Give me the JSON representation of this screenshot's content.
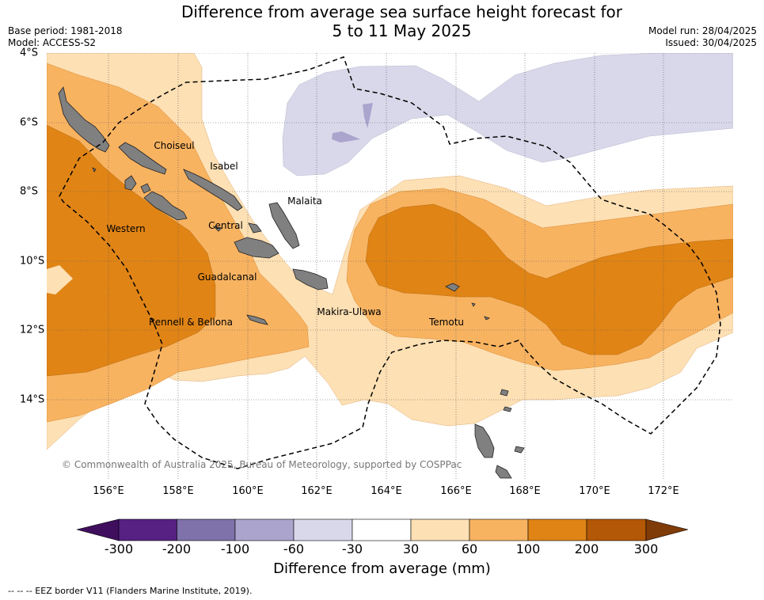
{
  "title_line1": "Difference from average sea surface height forecast for",
  "title_line2": "5 to 11 May 2025",
  "base_period": "Base period: 1981-2018",
  "model": "Model: ACCESS-S2",
  "model_run": "Model run: 28/04/2025",
  "issued": "Issued: 30/04/2025",
  "lon_labels": [
    "156°E",
    "158°E",
    "160°E",
    "162°E",
    "164°E",
    "166°E",
    "168°E",
    "170°E",
    "172°E"
  ],
  "lat_labels": [
    "4°S",
    "6°S",
    "8°S",
    "10°S",
    "12°S",
    "14°S"
  ],
  "regions": {
    "choiseul": "Choiseul",
    "isabel": "Isabel",
    "malaita": "Malaita",
    "western": "Western",
    "central": "Central",
    "guadalcanal": "Guadalcanal",
    "makira": "Makira-Ulawa",
    "rennell": "Rennell & Bellona",
    "temotu": "Temotu"
  },
  "copyright": "© Commonwealth of Australia 2025, Bureau of Meteorology, supported by COSPPac",
  "colorbar": {
    "ticks": [
      "-300",
      "-200",
      "-100",
      "-60",
      "-30",
      "30",
      "60",
      "100",
      "200",
      "300"
    ],
    "colors": [
      "#3f0f5e",
      "#562183",
      "#7f71a9",
      "#aba4cd",
      "#d8d8ea",
      "#ffffff",
      "#fde0b4",
      "#f8b361",
      "#e08416",
      "#b35806",
      "#7f3b08"
    ],
    "label": "Difference from average (mm)"
  },
  "legend_note": "--  --  -- EEZ border V11 (Flanders Marine Institute, 2019)."
}
